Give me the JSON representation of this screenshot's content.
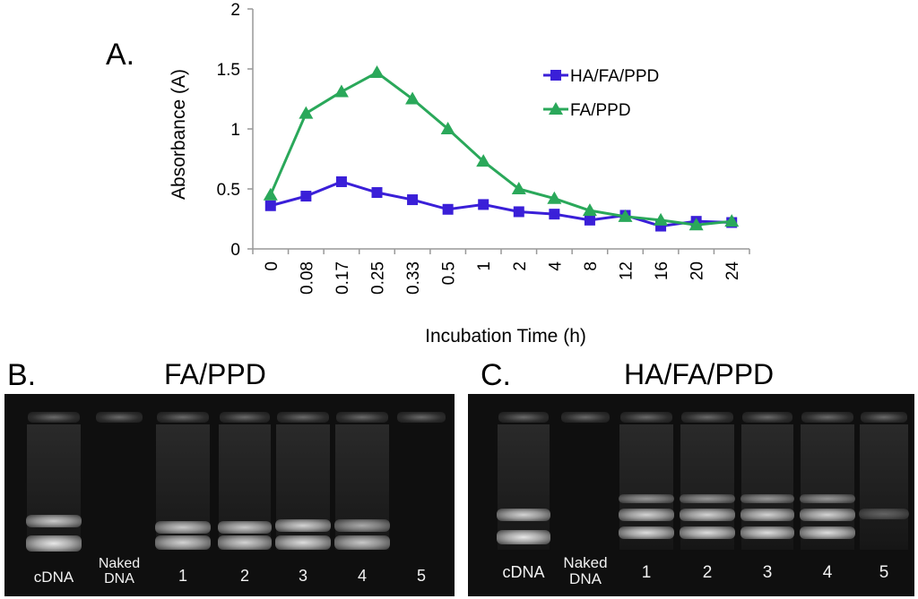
{
  "panel_a_label": "A.",
  "chart_data": {
    "type": "line",
    "xlabel": "Incubation Time (h)",
    "ylabel": "Absorbance (A)",
    "categories": [
      "0",
      "0.08",
      "0.17",
      "0.25",
      "0.33",
      "0.5",
      "1",
      "2",
      "4",
      "8",
      "12",
      "16",
      "20",
      "24"
    ],
    "ylim": [
      0,
      2
    ],
    "yticks": [
      "0",
      "0.5",
      "1",
      "1.5",
      "2"
    ],
    "legend_position": "top-right",
    "grid": false,
    "series": [
      {
        "name": "HA/FA/PPD",
        "color": "#3a1fd8",
        "marker": "square",
        "values": [
          0.36,
          0.44,
          0.56,
          0.47,
          0.41,
          0.33,
          0.37,
          0.31,
          0.29,
          0.24,
          0.28,
          0.19,
          0.23,
          0.22
        ]
      },
      {
        "name": "FA/PPD",
        "color": "#2aa85a",
        "marker": "triangle",
        "values": [
          0.45,
          1.13,
          1.31,
          1.47,
          1.25,
          1.0,
          0.73,
          0.5,
          0.42,
          0.32,
          0.27,
          0.24,
          0.2,
          0.23
        ]
      }
    ]
  },
  "gel_b": {
    "label": "B.",
    "title": "FA/PPD",
    "lanes": [
      "cDNA",
      "Naked\nDNA",
      "1",
      "2",
      "3",
      "4",
      "5"
    ]
  },
  "gel_c": {
    "label": "C.",
    "title": "HA/FA/PPD",
    "lanes": [
      "cDNA",
      "Naked\nDNA",
      "1",
      "2",
      "3",
      "4",
      "5"
    ]
  }
}
